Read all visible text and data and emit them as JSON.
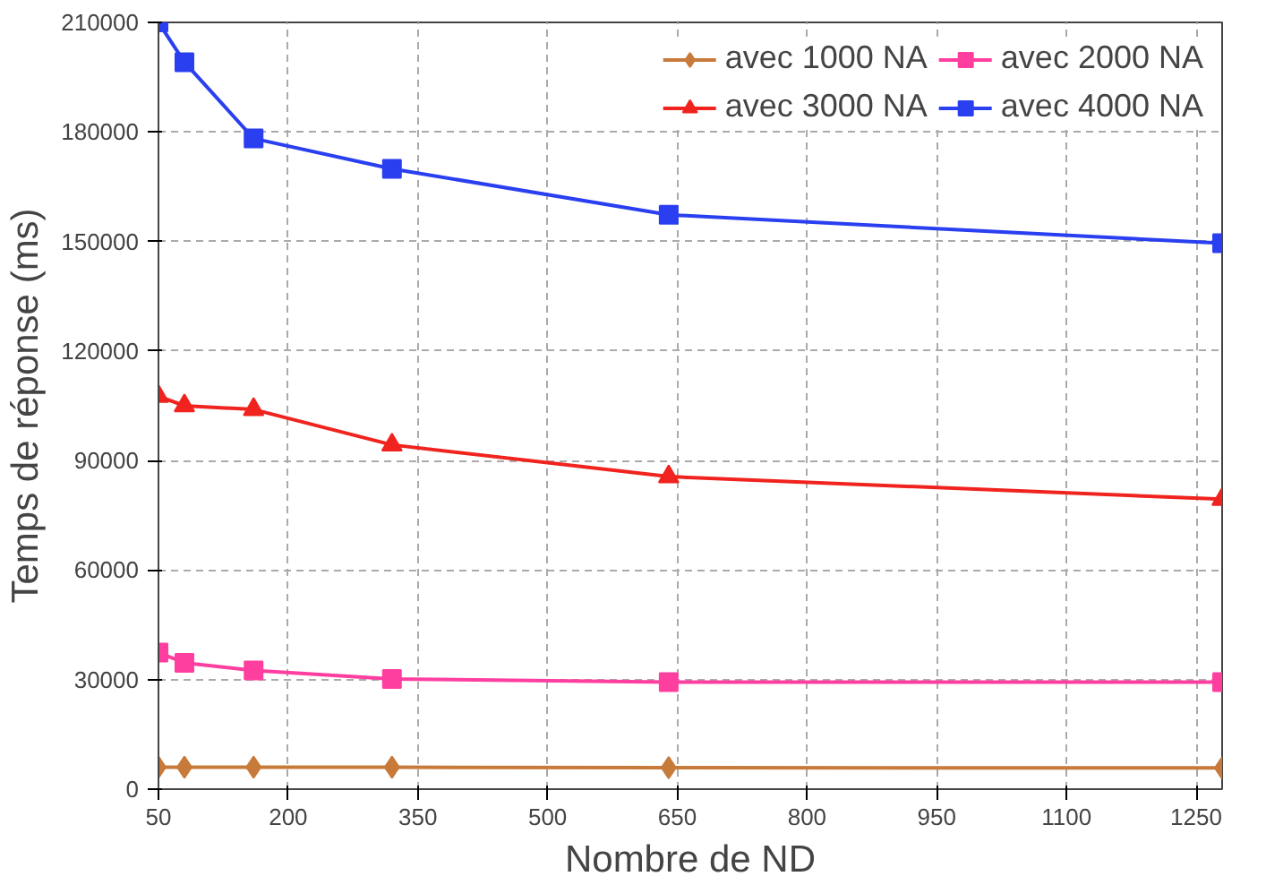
{
  "chart_data": {
    "type": "line",
    "xlabel": "Nombre de ND",
    "ylabel": "Temps de réponse (ms)",
    "xlim": [
      50,
      1280
    ],
    "xticks": [
      50,
      200,
      350,
      500,
      650,
      800,
      950,
      1100,
      1250
    ],
    "ylim": [
      0,
      210000
    ],
    "yticks": [
      0,
      30000,
      60000,
      90000,
      120000,
      150000,
      180000,
      210000
    ],
    "grid": true,
    "legend": "top right",
    "series": [
      {
        "name": "avec 1000 NA",
        "color": "#c87a3a",
        "marker": "diamond",
        "x": [
          50,
          80,
          160,
          320,
          640,
          1280
        ],
        "values": [
          6000,
          6000,
          6000,
          6000,
          5900,
          5800
        ]
      },
      {
        "name": "avec 2000 NA",
        "color": "#ff3fa0",
        "marker": "square",
        "x": [
          50,
          80,
          160,
          320,
          640,
          1280
        ],
        "values": [
          37400,
          34600,
          32500,
          30200,
          29300,
          29300
        ]
      },
      {
        "name": "avec 3000 NA",
        "color": "#f0231e",
        "marker": "triangle",
        "x": [
          50,
          80,
          160,
          320,
          640,
          1280
        ],
        "values": [
          107600,
          105000,
          104000,
          94300,
          85600,
          79400
        ]
      },
      {
        "name": "avec 4000 NA",
        "color": "#2a3ff0",
        "marker": "square",
        "x": [
          50,
          80,
          160,
          320,
          640,
          1280
        ],
        "values": [
          210000,
          199100,
          178200,
          169900,
          157300,
          149500
        ]
      }
    ]
  }
}
